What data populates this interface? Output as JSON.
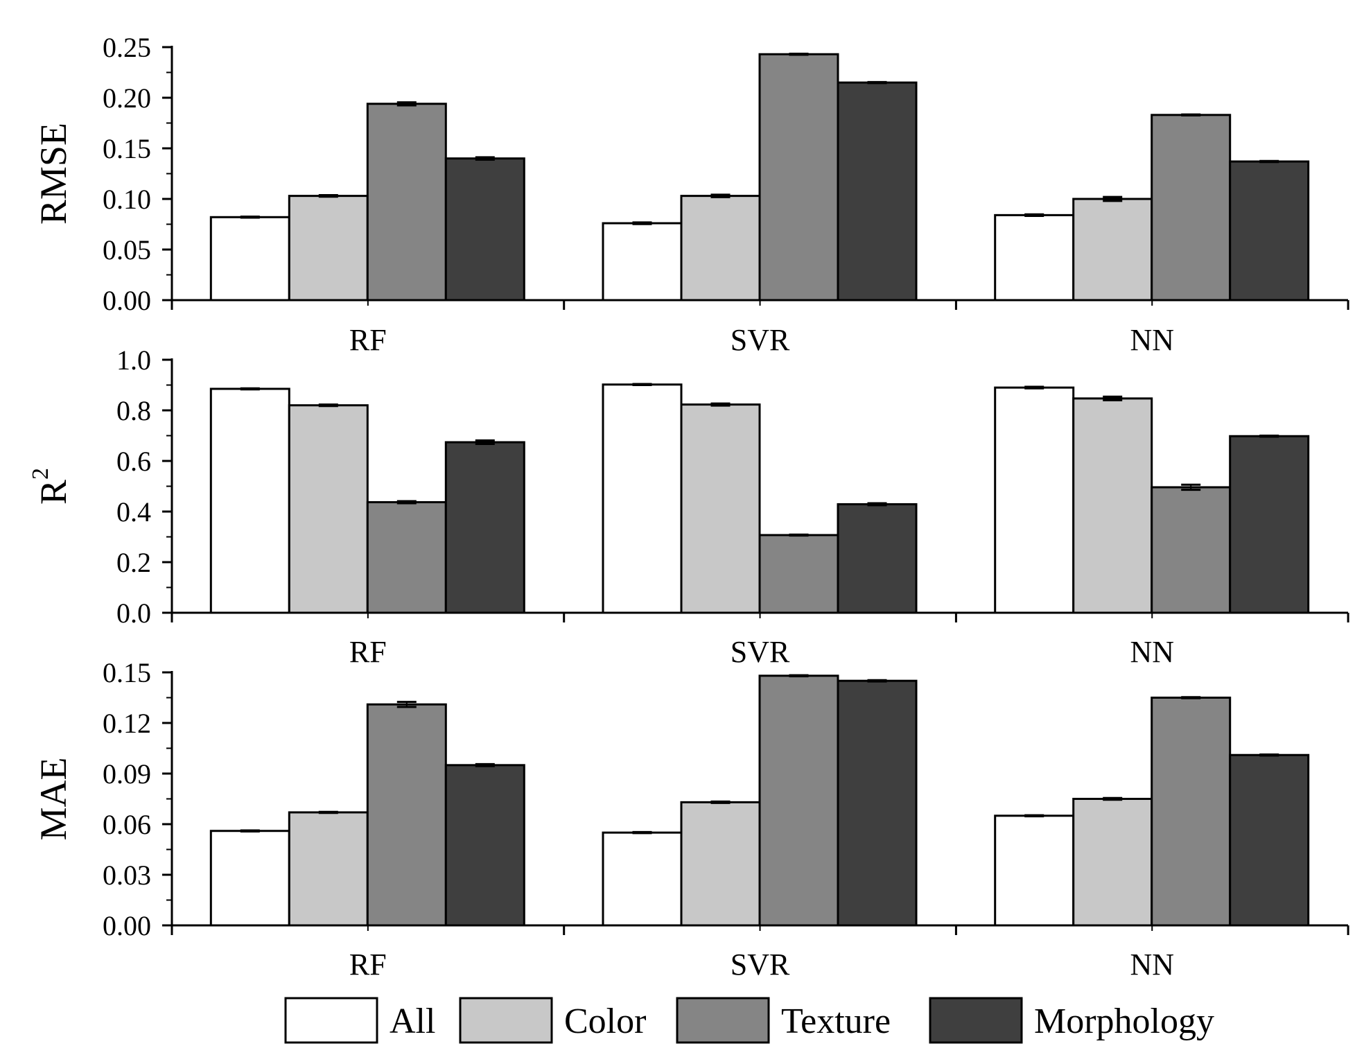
{
  "legend": {
    "position": "bottom",
    "items": [
      {
        "label": "All",
        "color": "#ffffff"
      },
      {
        "label": "Color",
        "color": "#c8c8c8"
      },
      {
        "label": "Texture",
        "color": "#858585"
      },
      {
        "label": "Morphology",
        "color": "#3f3f3f"
      }
    ]
  },
  "colors": {
    "All": "#ffffff",
    "Color": "#c8c8c8",
    "Texture": "#858585",
    "Morphology": "#3f3f3f",
    "outline": "#000000"
  },
  "chart_data": [
    {
      "type": "bar",
      "ylabel": "RMSE",
      "categories": [
        "RF",
        "SVR",
        "NN"
      ],
      "ylim": [
        0,
        0.25
      ],
      "yticks": [
        0.0,
        0.05,
        0.1,
        0.15,
        0.2,
        0.25
      ],
      "tick_labels": [
        "0.00",
        "0.05",
        "0.10",
        "0.15",
        "0.20",
        "0.25"
      ],
      "series": [
        {
          "name": "All",
          "values": [
            0.082,
            0.076,
            0.084
          ],
          "errors": [
            0.0005,
            0.0008,
            0.0008
          ]
        },
        {
          "name": "Color",
          "values": [
            0.103,
            0.103,
            0.1
          ],
          "errors": [
            0.0008,
            0.0012,
            0.002
          ]
        },
        {
          "name": "Texture",
          "values": [
            0.194,
            0.243,
            0.183
          ],
          "errors": [
            0.0015,
            0.0005,
            0.0005
          ]
        },
        {
          "name": "Morphology",
          "values": [
            0.14,
            0.215,
            0.137
          ],
          "errors": [
            0.0012,
            0.0005,
            0.0005
          ]
        }
      ]
    },
    {
      "type": "bar",
      "ylabel": "R",
      "ylabel_superscript": "2",
      "categories": [
        "RF",
        "SVR",
        "NN"
      ],
      "ylim": [
        0,
        1.0
      ],
      "yticks": [
        0.0,
        0.2,
        0.4,
        0.6,
        0.8,
        1.0
      ],
      "tick_labels": [
        "0.0",
        "0.2",
        "0.4",
        "0.6",
        "0.8",
        "1.0"
      ],
      "series": [
        {
          "name": "All",
          "values": [
            0.885,
            0.902,
            0.89
          ],
          "errors": [
            0.002,
            0.002,
            0.003
          ]
        },
        {
          "name": "Color",
          "values": [
            0.82,
            0.823,
            0.847
          ],
          "errors": [
            0.003,
            0.004,
            0.007
          ]
        },
        {
          "name": "Texture",
          "values": [
            0.437,
            0.307,
            0.496
          ],
          "errors": [
            0.004,
            0.002,
            0.01
          ]
        },
        {
          "name": "Morphology",
          "values": [
            0.674,
            0.429,
            0.698
          ],
          "errors": [
            0.007,
            0.004,
            0.002
          ]
        }
      ]
    },
    {
      "type": "bar",
      "ylabel": "MAE",
      "categories": [
        "RF",
        "SVR",
        "NN"
      ],
      "ylim": [
        0,
        0.15
      ],
      "yticks": [
        0.0,
        0.03,
        0.06,
        0.09,
        0.12,
        0.15
      ],
      "tick_labels": [
        "0.00",
        "0.03",
        "0.06",
        "0.09",
        "0.12",
        "0.15"
      ],
      "series": [
        {
          "name": "All",
          "values": [
            0.056,
            0.055,
            0.065
          ],
          "errors": [
            0.0003,
            0.0003,
            0.0003
          ]
        },
        {
          "name": "Color",
          "values": [
            0.067,
            0.073,
            0.075
          ],
          "errors": [
            0.0003,
            0.0004,
            0.0005
          ]
        },
        {
          "name": "Texture",
          "values": [
            0.131,
            0.148,
            0.135
          ],
          "errors": [
            0.0015,
            0.0003,
            0.0003
          ]
        },
        {
          "name": "Morphology",
          "values": [
            0.095,
            0.145,
            0.101
          ],
          "errors": [
            0.0006,
            0.0004,
            0.0003
          ]
        }
      ]
    }
  ]
}
